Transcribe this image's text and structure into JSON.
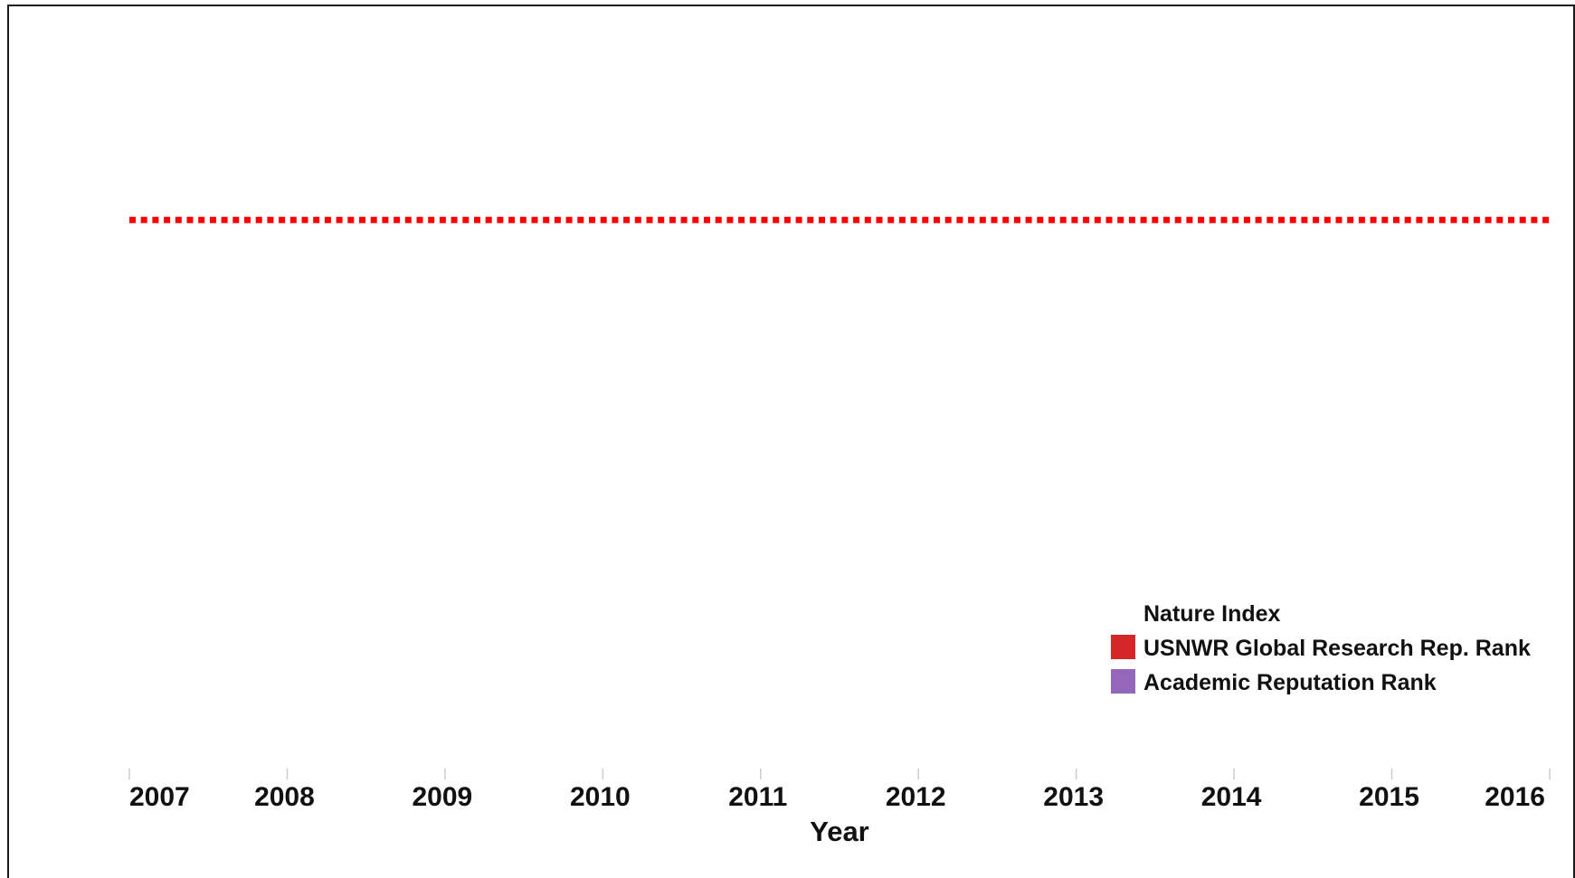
{
  "chart_data": {
    "type": "line",
    "title": "",
    "xlabel": "Year",
    "ylabel": "",
    "categories": [
      "2007",
      "2008",
      "2009",
      "2010",
      "2011",
      "2012",
      "2013",
      "2014",
      "2015",
      "2016"
    ],
    "x_range": [
      2007,
      2016
    ],
    "grid": false,
    "legend": {
      "position": "bottom-right",
      "title": "Nature Index",
      "items": [
        {
          "label": "USNWR Global Research Rep. Rank",
          "color": "#d62728"
        },
        {
          "label": "Academic Reputation Rank",
          "color": "#9467bd"
        }
      ]
    },
    "series": [
      {
        "name": "USNWR Global Research Rep. Rank",
        "color": "#ff0000",
        "style": "dotted",
        "x": [
          2007,
          2016
        ],
        "level": 0.74
      }
    ]
  }
}
